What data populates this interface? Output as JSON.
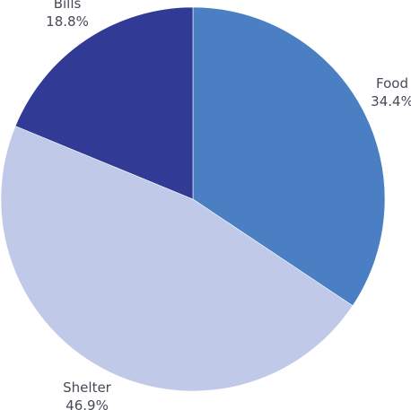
{
  "chart_data": {
    "type": "pie",
    "title": "",
    "start_angle_deg": 0,
    "direction": "clockwise",
    "slices": [
      {
        "label": "Food",
        "value": 34.4,
        "percent_label": "34.4%",
        "color": "#4b7fc3"
      },
      {
        "label": "Shelter",
        "value": 46.9,
        "percent_label": "46.9%",
        "color": "#c0cae8"
      },
      {
        "label": "Bills",
        "value": 18.8,
        "percent_label": "18.8%",
        "color": "#313b96"
      }
    ]
  }
}
